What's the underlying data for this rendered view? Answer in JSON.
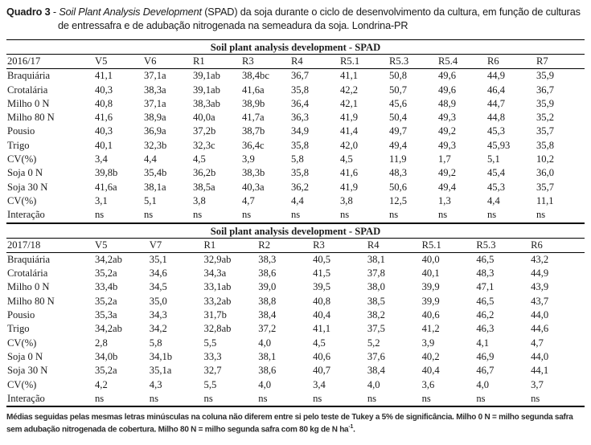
{
  "title": {
    "label": "Quadro 3",
    "separator": " - ",
    "italic_part": "Soil Plant Analysis Development",
    "rest": " (SPAD) da soja durante o ciclo de desenvolvimento da cultura, em função de culturas de entressafra e de adubação nitrogenada na semeadura da soja. Londrina-PR"
  },
  "tables": [
    {
      "section_header": "Soil plant analysis development - SPAD",
      "season": "2016/17",
      "columns": [
        "2016/17",
        "V5",
        "V6",
        "R1",
        "R3",
        "R4",
        "R5.1",
        "R5.3",
        "R5.4",
        "R6",
        "R7"
      ],
      "rows": [
        [
          "Braquiária",
          "41,1",
          "37,1a",
          "39,1ab",
          "38,4bc",
          "36,7",
          "41,1",
          "50,8",
          "49,6",
          "44,9",
          "35,9"
        ],
        [
          "Crotalária",
          "40,3",
          "38,3a",
          "39,1ab",
          "41,6a",
          "35,8",
          "42,2",
          "50,7",
          "49,6",
          "46,4",
          "36,7"
        ],
        [
          "Milho 0 N",
          "40,8",
          "37,1a",
          "38,3ab",
          "38,9b",
          "36,4",
          "42,1",
          "45,6",
          "48,9",
          "44,7",
          "35,9"
        ],
        [
          "Milho 80 N",
          "41,6",
          "38,9a",
          "40,0a",
          "41,7a",
          "36,3",
          "41,9",
          "50,4",
          "49,3",
          "44,8",
          "35,2"
        ],
        [
          "Pousio",
          "40,3",
          "36,9a",
          "37,2b",
          "38,7b",
          "34,9",
          "41,4",
          "49,7",
          "49,2",
          "45,3",
          "35,7"
        ],
        [
          "Trigo",
          "40,1",
          "32,3b",
          "32,3c",
          "36,4c",
          "35,8",
          "42,0",
          "49,4",
          "49,3",
          "45,93",
          "35,8"
        ],
        [
          "CV(%)",
          "3,4",
          "4,4",
          "4,5",
          "3,9",
          "5,8",
          "4,5",
          "11,9",
          "1,7",
          "5,1",
          "10,2"
        ],
        [
          "Soja 0 N",
          "39,8b",
          "35,4b",
          "36,2b",
          "38,3b",
          "35,8",
          "41,6",
          "48,3",
          "49,2",
          "45,4",
          "36,0"
        ],
        [
          "Soja 30 N",
          "41,6a",
          "38,1a",
          "38,5a",
          "40,3a",
          "36,2",
          "41,9",
          "50,6",
          "49,4",
          "45,3",
          "35,7"
        ],
        [
          "CV(%)",
          "3,1",
          "5,1",
          "3,8",
          "4,7",
          "4,4",
          "3,8",
          "12,5",
          "1,3",
          "4,4",
          "11,1"
        ],
        [
          "Interação",
          "ns",
          "ns",
          "ns",
          "ns",
          "ns",
          "ns",
          "ns",
          "ns",
          "ns",
          "ns"
        ]
      ]
    },
    {
      "section_header": "Soil plant analysis development - SPAD",
      "season": "2017/18",
      "columns": [
        "2017/18",
        "V5",
        "V7",
        "R1",
        "R2",
        "R3",
        "R4",
        "R5.1",
        "R5.3",
        "R6"
      ],
      "rows": [
        [
          "Braquiária",
          "34,2ab",
          "35,1",
          "32,9ab",
          "38,3",
          "40,5",
          "38,1",
          "40,0",
          "46,5",
          "43,2"
        ],
        [
          "Crotalária",
          "35,2a",
          "34,6",
          "34,3a",
          "38,6",
          "41,5",
          "37,8",
          "40,1",
          "48,3",
          "44,9"
        ],
        [
          "Milho 0 N",
          "33,4b",
          "34,5",
          "33,1ab",
          "39,0",
          "39,5",
          "38,0",
          "39,9",
          "47,1",
          "43,9"
        ],
        [
          "Milho 80 N",
          "35,2a",
          "35,0",
          "33,2ab",
          "38,8",
          "40,8",
          "38,5",
          "39,9",
          "46,5",
          "43,7"
        ],
        [
          "Pousio",
          "35,3a",
          "34,3",
          "31,7b",
          "38,4",
          "40,4",
          "38,2",
          "40,6",
          "46,2",
          "44,0"
        ],
        [
          "Trigo",
          "34,2ab",
          "34,2",
          "32,8ab",
          "37,2",
          "41,1",
          "37,5",
          "41,2",
          "46,3",
          "44,6"
        ],
        [
          "CV(%)",
          "2,8",
          "5,8",
          "5,5",
          "4,0",
          "4,5",
          "5,2",
          "3,9",
          "4,1",
          "4,7"
        ],
        [
          "Soja 0 N",
          "34,0b",
          "34,1b",
          "33,3",
          "38,1",
          "40,6",
          "37,6",
          "40,2",
          "46,9",
          "44,0"
        ],
        [
          "Soja 30 N",
          "35,2a",
          "35,1a",
          "32,7",
          "38,6",
          "40,7",
          "38,4",
          "40,4",
          "46,7",
          "44,1"
        ],
        [
          "CV(%)",
          "4,2",
          "4,3",
          "5,5",
          "4,0",
          "3,4",
          "4,0",
          "3,6",
          "4,0",
          "3,7"
        ],
        [
          "Interação",
          "ns",
          "ns",
          "ns",
          "ns",
          "ns",
          "ns",
          "ns",
          "ns",
          "ns"
        ]
      ]
    }
  ],
  "footnote": {
    "text": "Médias seguidas pelas mesmas letras minúsculas na coluna não diferem entre si pelo teste de Tukey a 5% de significância. Milho 0 N = milho segunda safra sem adubação nitrogenada de cobertura. Milho 80 N = milho segunda safra com 80 kg de N ha",
    "superscript": "-1",
    "period": "."
  }
}
